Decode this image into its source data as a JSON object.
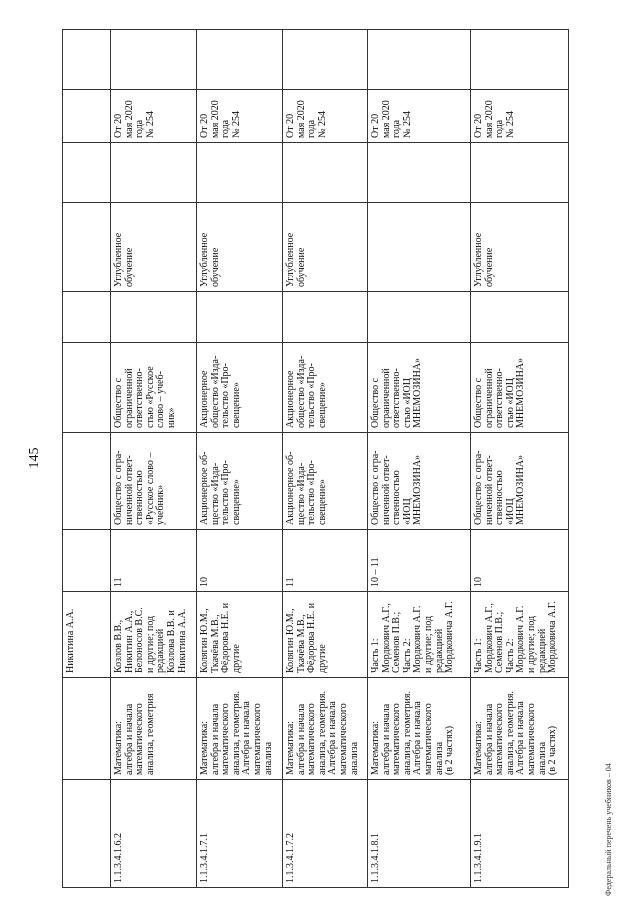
{
  "page_number": "145",
  "footer": "Федеральный перечень учебников – 04",
  "rows": [
    {
      "code": "",
      "title": "",
      "authors": "Никитина А.А.",
      "grade": "",
      "publisher": "",
      "publisher2": "",
      "col7": "",
      "level": "",
      "col9": "",
      "order": "",
      "col11": ""
    },
    {
      "code": "1.1.3.4.1.6.2",
      "title": "Математика:\nалгебра и начала\nматематического\nанализа, геометрия",
      "authors": "Козлов В.В.,\nНикитин А.А.,\nБелоносов В.С.\nи другие; под\nредакцией\nКозлова В.В. и\nНикитина А.А.",
      "grade": "11",
      "publisher": "Общество с огра-\nниченной ответ-\nственностью\n«Русское слово –\nучебник»",
      "publisher2": "Общество с\nограниченной\nответственно-\nстью «Русское\nслово – учеб-\nник»",
      "col7": "",
      "level": "Углубленное\nобучение",
      "col9": "",
      "order": "От 20\nмая 2020\nгода\n№ 254",
      "col11": ""
    },
    {
      "code": "1.1.3.4.1.7.1",
      "title": "Математика:\nалгебра и начала\nматематического\nанализа, геометрия.\nАлгебра и начала\nматематического\nанализа",
      "authors": "Колягин Ю.М.,\nТкачёва М.В.,\nФёдорова Н.Е. и\nдругие",
      "grade": "10",
      "publisher": "Акционерное об-\nщество «Изда-\nтельство «Про-\nсвещение»",
      "publisher2": "Акционерное\nобщество «Изда-\nтельство «Про-\nсвещение»",
      "col7": "",
      "level": "Углубленное\nобучение",
      "col9": "",
      "order": "От 20\nмая 2020\nгода\n№ 254",
      "col11": ""
    },
    {
      "code": "1.1.3.4.1.7.2",
      "title": "Математика:\nалгебра и начала\nматематического\nанализа, геометрия.\nАлгебра и начала\nматематического\nанализа",
      "authors": "Колягин Ю.М.,\nТкачёва М.В.,\nФёдорова Н.Е. и\nдругие",
      "grade": "11",
      "publisher": "Акционерное об-\nщество «Изда-\nтельство «Про-\nсвещение»",
      "publisher2": "Акционерное\nобщество «Изда-\nтельство «Про-\nсвещение»",
      "col7": "",
      "level": "Углубленное\nобучение",
      "col9": "",
      "order": "От 20\nмая 2020\nгода\n№ 254",
      "col11": ""
    },
    {
      "code": "1.1.3.4.1.8.1",
      "title": "Математика:\nалгебра и начала\nматематического\nанализа, геометрия.\nАлгебра и начала\nматематического\nанализа\n(в 2 частях)",
      "authors": "Часть 1:\nМордкович А.Г.,\nСеменов П.В.;\nЧасть 2:\nМордкович А.Г.\nи другие; под\nредакцией\nМордковича А.Г.",
      "grade": "10 – 11",
      "publisher": "Общество с огра-\nниченной ответ-\nственностью\n«ИОЦ\nМНЕМОЗИНА»",
      "publisher2": "Общество с\nограниченной\nответственно-\nстью «ИОЦ\nМНЕМОЗИНА»",
      "col7": "",
      "level": "",
      "col9": "",
      "order": "От 20\nмая 2020\nгода\n№ 254",
      "col11": ""
    },
    {
      "code": "1.1.3.4.1.9.1",
      "title": "Математика:\nалгебра и начала\nматематического\nанализа, геометрия.\nАлгебра и начала\nматематического\nанализа\n(в 2 частях)",
      "authors": "Часть 1:\nМордкович А.Г.,\nСеменов П.В.;\nЧасть 2:\nМордкович А.Г.\nи другие; под\nредакцией\nМордковича А.Г.",
      "grade": "10",
      "publisher": "Общество с огра-\nниченной ответ-\nственностью\n«ИОЦ\nМНЕМОЗИНА»",
      "publisher2": "Общество с\nограниченной\nответственно-\nстью «ИОЦ\nМНЕМОЗИНА»",
      "col7": "",
      "level": "Углубленное\nобучение",
      "col9": "",
      "order": "От 20\nмая 2020\nгода\n№ 254",
      "col11": ""
    }
  ]
}
